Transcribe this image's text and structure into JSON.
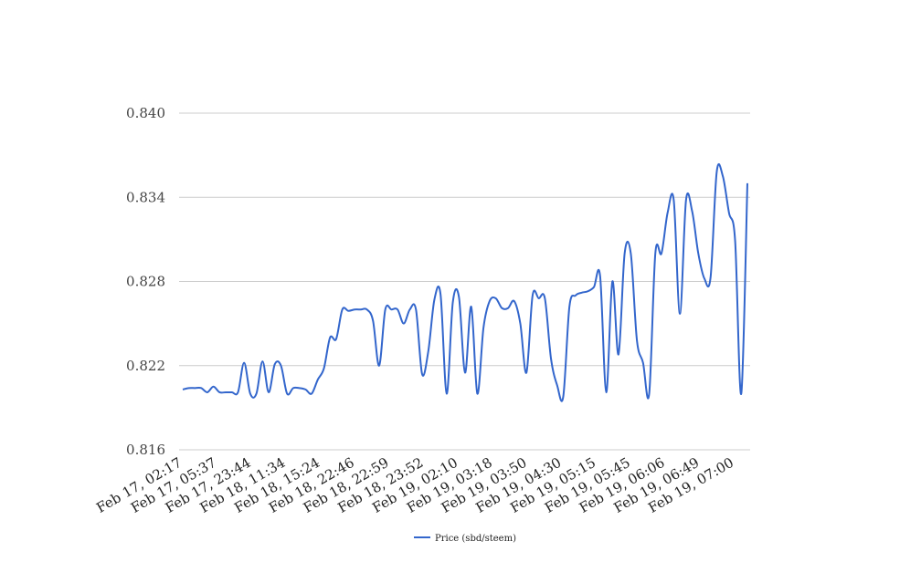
{
  "chart_data": {
    "type": "line",
    "title": "",
    "xlabel": "",
    "ylabel": "",
    "ylim": [
      0.816,
      0.84
    ],
    "yticks": [
      "0.816",
      "0.822",
      "0.828",
      "0.834",
      "0.840"
    ],
    "grid": true,
    "legend_position": "bottom",
    "x_tick_labels": [
      "Feb 17, 02:17",
      "Feb 17, 05:37",
      "Feb 17, 23:44",
      "Feb 18, 11:34",
      "Feb 18, 15:24",
      "Feb 18, 22:46",
      "Feb 18, 22:59",
      "Feb 18, 23:52",
      "Feb 19, 02:10",
      "Feb 19, 03:18",
      "Feb 19, 03:50",
      "Feb 19, 04:30",
      "Feb 19, 05:15",
      "Feb 19, 05:45",
      "Feb 19, 06:06",
      "Feb 19, 06:49",
      "Feb 19, 07:00"
    ],
    "series": [
      {
        "name": "Price (sbd/steem)",
        "color": "#3366cc",
        "values": [
          0.8203,
          0.8204,
          0.8204,
          0.8204,
          0.8201,
          0.8205,
          0.8201,
          0.8201,
          0.8201,
          0.8201,
          0.8222,
          0.82,
          0.82,
          0.8223,
          0.8201,
          0.8221,
          0.822,
          0.82,
          0.8204,
          0.8204,
          0.8203,
          0.82,
          0.821,
          0.8218,
          0.824,
          0.8239,
          0.826,
          0.8259,
          0.826,
          0.826,
          0.826,
          0.8252,
          0.822,
          0.826,
          0.826,
          0.826,
          0.825,
          0.826,
          0.826,
          0.8214,
          0.823,
          0.8267,
          0.8271,
          0.82,
          0.8265,
          0.8269,
          0.8215,
          0.8262,
          0.82,
          0.8247,
          0.8266,
          0.8268,
          0.8261,
          0.8261,
          0.8266,
          0.825,
          0.8215,
          0.827,
          0.8268,
          0.8268,
          0.8225,
          0.8206,
          0.8198,
          0.8262,
          0.827,
          0.8272,
          0.8273,
          0.8276,
          0.8284,
          0.8201,
          0.828,
          0.8228,
          0.83,
          0.83,
          0.8238,
          0.8222,
          0.82,
          0.83,
          0.83,
          0.8329,
          0.8338,
          0.8257,
          0.8338,
          0.833,
          0.83,
          0.8282,
          0.8283,
          0.8358,
          0.8355,
          0.8329,
          0.8309,
          0.82,
          0.835
        ]
      }
    ]
  }
}
